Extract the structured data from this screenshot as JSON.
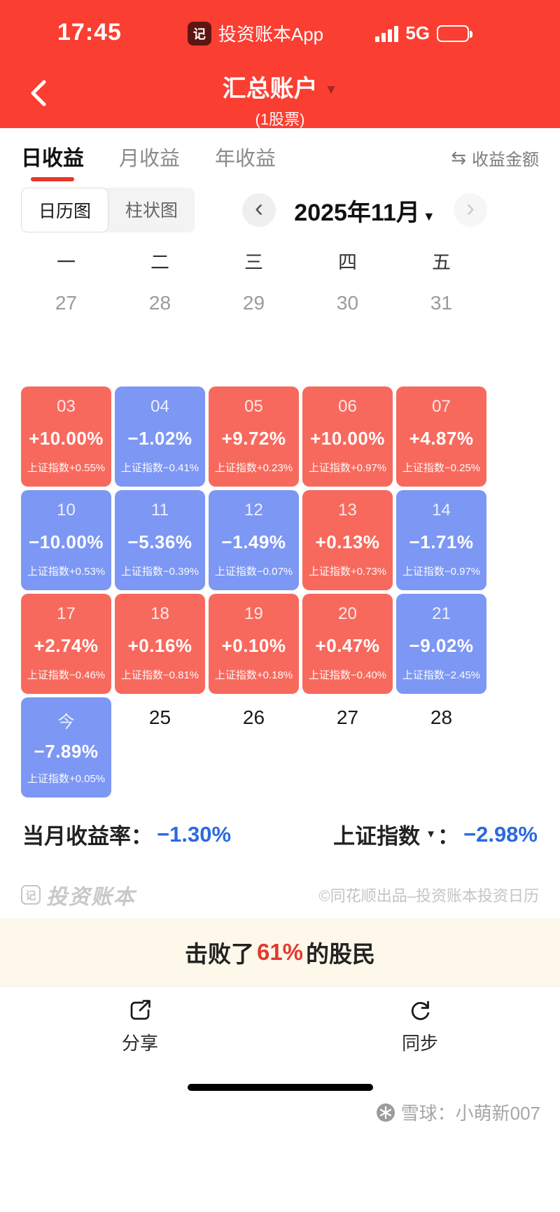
{
  "status_bar": {
    "time": "17:45",
    "app_label": "投资账本App",
    "network": "5G"
  },
  "header": {
    "title": "汇总账户",
    "subtitle": "(1股票)"
  },
  "tabs": {
    "day": "日收益",
    "month": "月收益",
    "year": "年收益",
    "amount_toggle": "收益金额"
  },
  "view_toggle": {
    "calendar": "日历图",
    "bar": "柱状图"
  },
  "month_nav": {
    "label": "2025年11月"
  },
  "calendar": {
    "weekdays": [
      "一",
      "二",
      "三",
      "四",
      "五"
    ],
    "prev_month_days": [
      "27",
      "28",
      "29",
      "30",
      "31"
    ],
    "cells": [
      {
        "day": "03",
        "value": "+10.00%",
        "index_label": "上证指数+0.55%",
        "color": "red"
      },
      {
        "day": "04",
        "value": "−1.02%",
        "index_label": "上证指数−0.41%",
        "color": "blue"
      },
      {
        "day": "05",
        "value": "+9.72%",
        "index_label": "上证指数+0.23%",
        "color": "red"
      },
      {
        "day": "06",
        "value": "+10.00%",
        "index_label": "上证指数+0.97%",
        "color": "red"
      },
      {
        "day": "07",
        "value": "+4.87%",
        "index_label": "上证指数−0.25%",
        "color": "red"
      },
      {
        "day": "10",
        "value": "−10.00%",
        "index_label": "上证指数+0.53%",
        "color": "blue"
      },
      {
        "day": "11",
        "value": "−5.36%",
        "index_label": "上证指数−0.39%",
        "color": "blue"
      },
      {
        "day": "12",
        "value": "−1.49%",
        "index_label": "上证指数−0.07%",
        "color": "blue"
      },
      {
        "day": "13",
        "value": "+0.13%",
        "index_label": "上证指数+0.73%",
        "color": "red"
      },
      {
        "day": "14",
        "value": "−1.71%",
        "index_label": "上证指数−0.97%",
        "color": "blue"
      },
      {
        "day": "17",
        "value": "+2.74%",
        "index_label": "上证指数−0.46%",
        "color": "red"
      },
      {
        "day": "18",
        "value": "+0.16%",
        "index_label": "上证指数−0.81%",
        "color": "red"
      },
      {
        "day": "19",
        "value": "+0.10%",
        "index_label": "上证指数+0.18%",
        "color": "red"
      },
      {
        "day": "20",
        "value": "+0.47%",
        "index_label": "上证指数−0.40%",
        "color": "red"
      },
      {
        "day": "21",
        "value": "−9.02%",
        "index_label": "上证指数−2.45%",
        "color": "blue"
      },
      {
        "day": "今",
        "value": "−7.89%",
        "index_label": "上证指数+0.05%",
        "color": "blue"
      }
    ],
    "next_days": [
      "25",
      "26",
      "27",
      "28"
    ]
  },
  "summary": {
    "month_label": "当月收益率：",
    "month_value": "−1.30%",
    "index_label": "上证指数",
    "index_colon": "：",
    "index_value": "−2.98%"
  },
  "branding": {
    "logo_glyph": "记",
    "logo_text": "投资账本",
    "credit": "©同花顺出品–投资账本投资日历"
  },
  "banner": {
    "prefix": "击败了",
    "highlight": "61%",
    "suffix": "的股民"
  },
  "actions": {
    "share": "分享",
    "sync": "同步"
  },
  "page_footer": {
    "watermark": "雪球：小萌新007"
  },
  "icons": {
    "dropdown": "▼",
    "swap": "⇆",
    "prev": "‹",
    "next": "›"
  },
  "colors": {
    "primary_red": "#fb3e32",
    "cell_red": "#f8695d",
    "cell_blue": "#7d97f4",
    "value_blue": "#2b6ae0",
    "highlight_red": "#e2392e",
    "banner_bg": "#fdf8e9"
  }
}
